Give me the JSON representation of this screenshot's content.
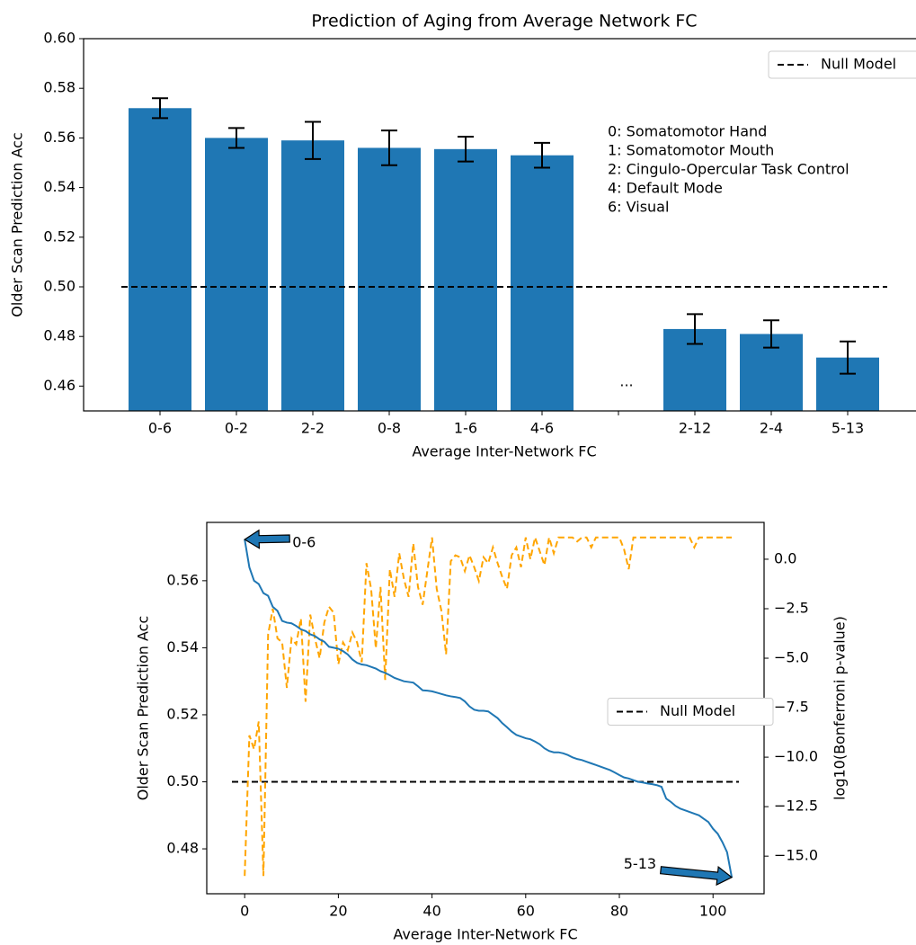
{
  "chart_data": [
    {
      "type": "bar",
      "title": "Prediction of Aging from Average Network FC",
      "x_label": "Average Inter-Network FC",
      "y_label": "Older Scan Prediction Acc",
      "categories": [
        "0-6",
        "0-2",
        "2-2",
        "0-8",
        "1-6",
        "4-6",
        null,
        "2-12",
        "2-4",
        "5-13"
      ],
      "values": [
        0.572,
        0.56,
        0.559,
        0.556,
        0.5555,
        0.553,
        null,
        0.483,
        0.481,
        0.4715
      ],
      "errors": [
        0.004,
        0.004,
        0.0075,
        0.007,
        0.005,
        0.005,
        null,
        0.006,
        0.0055,
        0.0065
      ],
      "color": "#1f77b4",
      "ylim": [
        0.45,
        0.6
      ],
      "yticks": [
        0.46,
        0.48,
        {
          "value": 0.5,
          "label": "0.50"
        },
        0.52,
        0.54,
        0.56,
        0.58,
        {
          "value": 0.6,
          "label": "0.60"
        }
      ],
      "reference_lines": [
        {
          "name": "Null Model",
          "value": 0.5,
          "color": "#000000"
        }
      ],
      "legend": "upper right",
      "gap_annotation": "...",
      "annotations": [
        "0: Somatomotor Hand",
        "1: Somatomotor Mouth",
        "2: Cingulo-Opercular Task Control",
        "4: Default Mode",
        "6: Visual"
      ]
    },
    {
      "type": "line",
      "x_label": "Average Inter-Network FC",
      "y_label": "Older Scan Prediction Acc",
      "y2_label": "log10(Bonferroni p-value)",
      "x": [
        0,
        1,
        2,
        3,
        4,
        5,
        6,
        7,
        8,
        9,
        10,
        11,
        12,
        13,
        14,
        15,
        16,
        17,
        18,
        19,
        20,
        21,
        22,
        23,
        24,
        25,
        26,
        27,
        28,
        29,
        30,
        31,
        32,
        33,
        34,
        35,
        36,
        37,
        38,
        39,
        40,
        41,
        42,
        43,
        44,
        45,
        46,
        47,
        48,
        49,
        50,
        51,
        52,
        53,
        54,
        55,
        56,
        57,
        58,
        59,
        60,
        61,
        62,
        63,
        64,
        65,
        66,
        67,
        68,
        69,
        70,
        71,
        72,
        73,
        74,
        75,
        76,
        77,
        78,
        79,
        80,
        81,
        82,
        83,
        84,
        85,
        86,
        87,
        88,
        89,
        90,
        91,
        92,
        93,
        94,
        95,
        96,
        97,
        98,
        99,
        100,
        101,
        102,
        103,
        104
      ],
      "series": [
        {
          "color": "#1f77b4",
          "values": [
            0.5723,
            0.564,
            0.56,
            0.559,
            0.5563,
            0.5555,
            0.5522,
            0.551,
            0.548,
            0.5475,
            0.5473,
            0.5465,
            0.5455,
            0.545,
            0.544,
            0.5435,
            0.5425,
            0.5418,
            0.5403,
            0.54,
            0.5397,
            0.539,
            0.538,
            0.5365,
            0.5355,
            0.535,
            0.5348,
            0.5343,
            0.5338,
            0.533,
            0.5325,
            0.5318,
            0.531,
            0.5305,
            0.53,
            0.5298,
            0.5296,
            0.5285,
            0.5273,
            0.5272,
            0.527,
            0.5266,
            0.5262,
            0.5258,
            0.5255,
            0.5253,
            0.525,
            0.524,
            0.5225,
            0.5215,
            0.5212,
            0.5212,
            0.521,
            0.52,
            0.519,
            0.5175,
            0.5163,
            0.515,
            0.514,
            0.5135,
            0.513,
            0.5127,
            0.512,
            0.5112,
            0.51,
            0.5092,
            0.5088,
            0.5088,
            0.5085,
            0.508,
            0.5073,
            0.5068,
            0.5065,
            0.506,
            0.5055,
            0.505,
            0.5045,
            0.504,
            0.5035,
            0.5028,
            0.502,
            0.5013,
            0.501,
            0.5005,
            0.5,
            0.4998,
            0.4995,
            0.4993,
            0.499,
            0.4985,
            0.495,
            0.494,
            0.4928,
            0.492,
            0.4915,
            0.491,
            0.4905,
            0.49,
            0.489,
            0.488,
            0.486,
            0.4845,
            0.482,
            0.479,
            0.4715
          ]
        },
        {
          "color": "#ffa500",
          "dashed": true,
          "axis": "y2",
          "values": [
            -16.0,
            -8.9,
            -9.6,
            -8.2,
            -16.0,
            -3.8,
            -2.5,
            -4.0,
            -4.2,
            -6.5,
            -4.0,
            -4.3,
            -3.0,
            -7.2,
            -2.8,
            -4.0,
            -5.0,
            -3.2,
            -2.4,
            -2.7,
            -5.3,
            -4.2,
            -4.6,
            -3.7,
            -4.2,
            -5.2,
            -0.2,
            -1.5,
            -4.5,
            -1.4,
            -6.1,
            -0.5,
            -1.9,
            0.3,
            -1.0,
            -1.9,
            0.8,
            -1.4,
            -2.3,
            -0.6,
            1.1,
            -1.5,
            -2.6,
            -4.8,
            -0.1,
            0.2,
            0.1,
            -0.6,
            0.2,
            -0.4,
            -1.1,
            0.1,
            -0.2,
            0.6,
            -0.2,
            -0.9,
            -1.5,
            0.2,
            0.6,
            -0.4,
            1.1,
            0.0,
            1.1,
            0.4,
            -0.3,
            1.1,
            0.3,
            1.1,
            1.1,
            1.1,
            1.1,
            0.9,
            1.1,
            1.1,
            0.6,
            1.1,
            1.1,
            1.1,
            1.1,
            1.1,
            1.1,
            0.5,
            -0.5,
            1.1,
            1.1,
            1.1,
            1.1,
            1.1,
            1.1,
            1.1,
            1.1,
            1.1,
            1.1,
            1.1,
            1.1,
            1.1,
            0.6,
            1.1,
            1.1,
            1.1,
            1.1,
            1.1,
            1.1,
            1.1,
            1.1
          ]
        }
      ],
      "xlim": [
        -8.1,
        110.9
      ],
      "xticks": [
        0,
        20,
        40,
        60,
        80,
        100
      ],
      "ylim": [
        0.4666,
        0.5774
      ],
      "yticks": [
        0.48,
        {
          "value": 0.5,
          "label": "0.50"
        },
        0.52,
        0.54,
        0.56
      ],
      "y2lim": [
        -16.9,
        1.86
      ],
      "y2ticks": [
        {
          "value": 0,
          "label": "0.0"
        },
        {
          "value": -2.5,
          "label": "−2.5"
        },
        {
          "value": -5,
          "label": "−5.0"
        },
        {
          "value": -7.5,
          "label": "−7.5"
        },
        {
          "value": -10,
          "label": "−10.0"
        },
        {
          "value": -12.5,
          "label": "−12.5"
        },
        {
          "value": -15,
          "label": "−15.0"
        }
      ],
      "reference_lines": [
        {
          "name": "Null Model",
          "value": 0.5,
          "color": "#000000"
        }
      ],
      "legend": "center right",
      "annotations": [
        "0-6",
        "5-13"
      ]
    }
  ]
}
